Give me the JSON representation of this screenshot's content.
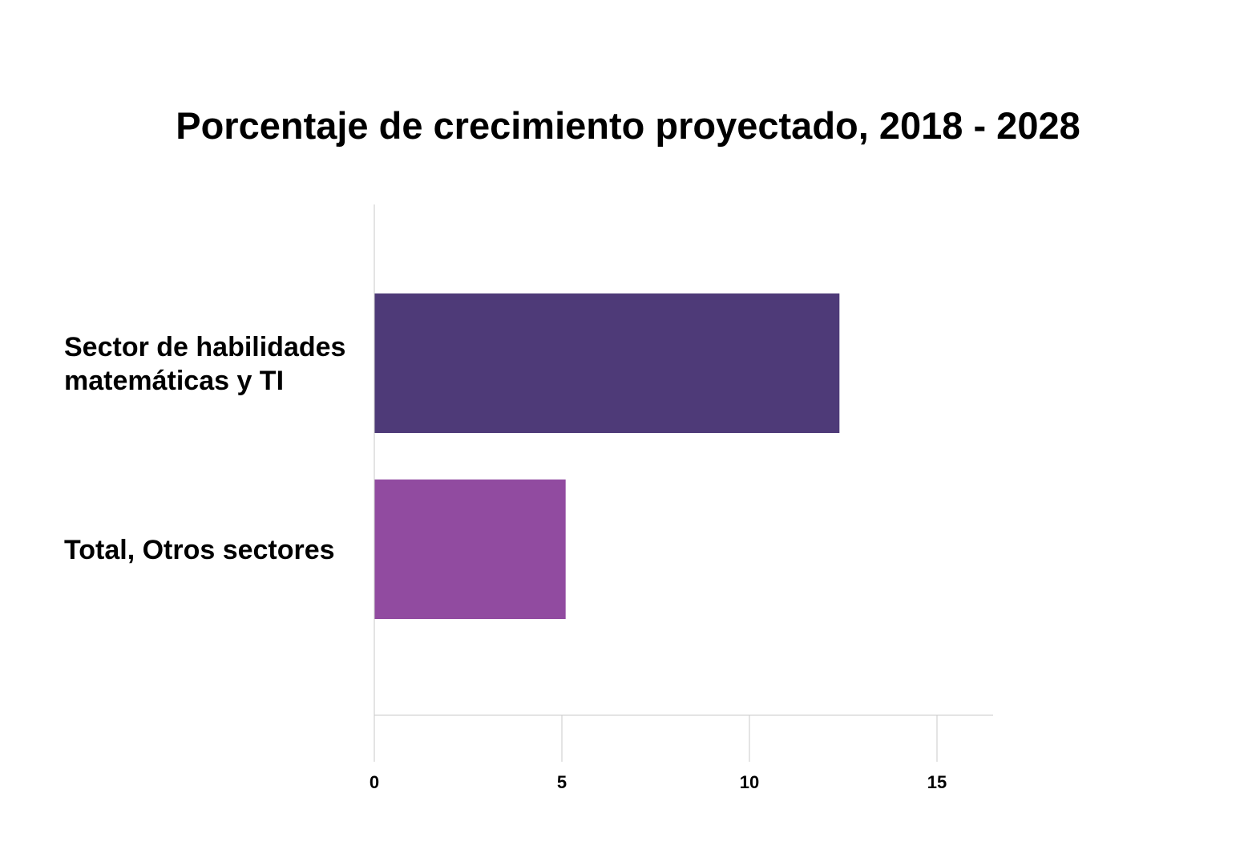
{
  "chart_data": {
    "type": "bar",
    "orientation": "horizontal",
    "title": "Porcentaje de crecimiento proyectado, 2018 - 2028",
    "categories": [
      [
        "Sector de habilidades",
        "matemáticas y TI"
      ],
      [
        "Total, Otros sectores"
      ]
    ],
    "values": [
      12.4,
      5.1
    ],
    "colors": [
      "#4e3a78",
      "#914ba0"
    ],
    "xlabel": "",
    "ylabel": "",
    "xlim": [
      0,
      16.5
    ],
    "x_ticks": [
      0,
      5,
      10,
      15
    ],
    "grid": true,
    "legend": "none"
  }
}
